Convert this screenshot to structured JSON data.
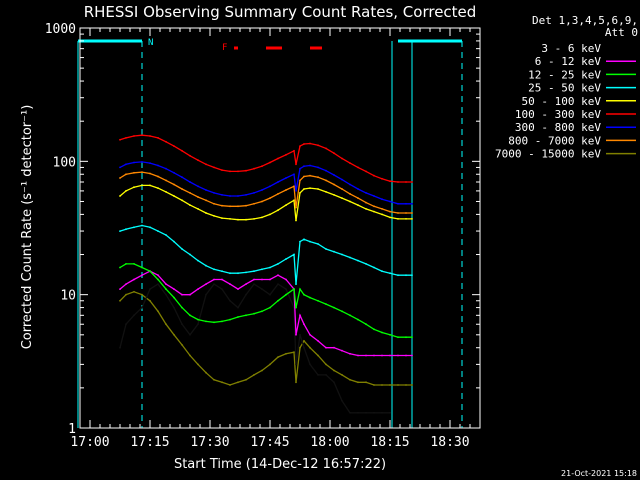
{
  "chart_data": {
    "type": "line",
    "title": "RHESSI Observing Summary Count Rates, Corrected",
    "xlabel": "Start Time (14-Dec-12 16:57:22)",
    "ylabel": "Corrected Count Rate (s⁻¹ detector⁻¹)",
    "y_scale": "log",
    "ylim": [
      1,
      1000
    ],
    "xlim": [
      "16:57:22",
      "18:37:00"
    ],
    "y_ticks": [
      "1",
      "10",
      "100",
      "1000"
    ],
    "x_ticks": [
      "17:00",
      "17:15",
      "17:30",
      "17:45",
      "18:00",
      "18:15",
      "18:30"
    ],
    "x_tick_minutes": [
      0,
      15,
      30,
      45,
      60,
      75,
      90
    ],
    "legend_header": [
      "Det 1,3,4,5,6,9,",
      "Att 0"
    ],
    "legend_placement": "right",
    "timestamp": "21-Oct-2021 15:18",
    "annotations": {
      "night_label": "N",
      "flare_label": "F",
      "night_intervals_min": [
        [
          -3,
          13
        ],
        [
          77,
          93
        ]
      ],
      "night_dashed_lines_min": [
        13,
        93
      ],
      "solid_lines_min": [
        -3,
        75.5,
        80.5
      ],
      "flare_segments_min": [
        [
          36,
          37
        ],
        [
          44,
          48
        ],
        [
          55,
          58
        ]
      ]
    },
    "series": [
      {
        "name": "3 - 6 keV",
        "color": "#000000",
        "times_min": [
          7.5,
          9,
          11,
          13,
          15,
          17,
          19,
          21,
          23,
          25,
          27,
          29,
          31,
          33,
          35,
          37,
          39,
          41,
          43,
          45,
          47,
          49,
          51,
          51.5,
          52.5,
          53.5,
          55,
          57,
          59,
          61,
          63,
          65,
          67,
          69,
          71,
          73,
          75
        ],
        "values": [
          4,
          6,
          7,
          8,
          11,
          12,
          10,
          8,
          6,
          5,
          6,
          10,
          12,
          11,
          9,
          8,
          10,
          12,
          11,
          10,
          12,
          11,
          8,
          3,
          5,
          4,
          3,
          2.5,
          2.5,
          2.2,
          1.6,
          1.3,
          1.3,
          1.3,
          1.3,
          1.3,
          1.3
        ]
      },
      {
        "name": "6 - 12 keV",
        "color": "#ff00ff",
        "times_min": [
          7.5,
          9,
          11,
          13,
          15,
          17,
          19,
          21,
          23,
          25,
          27,
          29,
          31,
          33,
          35,
          37,
          39,
          41,
          43,
          45,
          47,
          49,
          51,
          51.5,
          52.5,
          53.5,
          55,
          57,
          59,
          61,
          63,
          65,
          67,
          69,
          71,
          73,
          75,
          77,
          79,
          80.5
        ],
        "values": [
          11,
          12,
          13,
          14,
          15,
          14,
          12,
          11,
          10,
          10,
          11,
          12,
          13,
          13,
          12,
          11,
          12,
          13,
          13,
          13,
          14,
          13,
          11,
          5,
          7,
          6,
          5,
          4.5,
          4,
          4,
          3.8,
          3.6,
          3.5,
          3.5,
          3.5,
          3.5,
          3.5,
          3.5,
          3.5,
          3.5
        ]
      },
      {
        "name": "12 - 25 keV",
        "color": "#00ff00",
        "times_min": [
          7.5,
          9,
          11,
          13,
          15,
          17,
          19,
          21,
          23,
          25,
          27,
          29,
          31,
          33,
          35,
          37,
          39,
          41,
          43,
          45,
          47,
          49,
          51,
          51.5,
          52.5,
          53.5,
          55,
          57,
          59,
          61,
          63,
          65,
          67,
          69,
          71,
          73,
          75,
          77,
          79,
          80.5
        ],
        "values": [
          16,
          17,
          17,
          16,
          15,
          13,
          11,
          9.5,
          8,
          7,
          6.5,
          6.3,
          6.2,
          6.3,
          6.5,
          6.8,
          7,
          7.2,
          7.5,
          8,
          9,
          10,
          11,
          8,
          11,
          10,
          9.5,
          9,
          8.5,
          8,
          7.5,
          7,
          6.5,
          6,
          5.5,
          5.2,
          5,
          4.8,
          4.8,
          4.8
        ]
      },
      {
        "name": "25 - 50 keV",
        "color": "#00ffff",
        "times_min": [
          7.5,
          9,
          11,
          13,
          15,
          17,
          19,
          21,
          23,
          25,
          27,
          29,
          31,
          33,
          35,
          37,
          39,
          41,
          43,
          45,
          47,
          49,
          51,
          51.5,
          52.5,
          53.5,
          55,
          57,
          59,
          61,
          63,
          65,
          67,
          69,
          71,
          73,
          75,
          77,
          79,
          80.5
        ],
        "values": [
          30,
          31,
          32,
          33,
          32,
          30,
          28,
          25,
          22,
          20,
          18,
          16.5,
          15.5,
          15,
          14.5,
          14.5,
          14.7,
          15,
          15.5,
          16,
          17,
          18.5,
          20,
          12,
          25,
          26,
          25,
          24,
          22,
          21,
          20,
          19,
          18,
          17,
          16,
          15,
          14.5,
          14,
          14,
          14
        ]
      },
      {
        "name": "50 - 100 keV",
        "color": "#ffff00",
        "times_min": [
          7.5,
          9,
          11,
          13,
          15,
          17,
          19,
          21,
          23,
          25,
          27,
          29,
          31,
          33,
          35,
          37,
          39,
          41,
          43,
          45,
          47,
          49,
          51,
          51.5,
          52.5,
          53.5,
          55,
          57,
          59,
          61,
          63,
          65,
          67,
          69,
          71,
          73,
          75,
          77,
          79,
          80.5
        ],
        "values": [
          55,
          60,
          64,
          66,
          66,
          63,
          59,
          55,
          51,
          47,
          44,
          41,
          39,
          37.5,
          37,
          36.5,
          36.5,
          37,
          38,
          40,
          43,
          47,
          51,
          36,
          58,
          62,
          63,
          62,
          59,
          56,
          53,
          50,
          47,
          44,
          42,
          40,
          38,
          37,
          37,
          37
        ]
      },
      {
        "name": "100 - 300 keV",
        "color": "#ff0000",
        "times_min": [
          7.5,
          9,
          11,
          13,
          15,
          17,
          19,
          21,
          23,
          25,
          27,
          29,
          31,
          33,
          35,
          37,
          39,
          41,
          43,
          45,
          47,
          49,
          51,
          51.5,
          52.5,
          53.5,
          55,
          57,
          59,
          61,
          63,
          65,
          67,
          69,
          71,
          73,
          75,
          77,
          79,
          80.5
        ],
        "values": [
          145,
          150,
          155,
          157,
          155,
          150,
          140,
          130,
          120,
          110,
          102,
          95,
          90,
          86,
          84,
          84,
          85,
          88,
          92,
          98,
          105,
          112,
          120,
          95,
          130,
          135,
          136,
          132,
          125,
          115,
          105,
          97,
          90,
          84,
          78,
          74,
          71,
          70,
          70,
          70
        ]
      },
      {
        "name": "300 - 800 keV",
        "color": "#0000ff",
        "times_min": [
          7.5,
          9,
          11,
          13,
          15,
          17,
          19,
          21,
          23,
          25,
          27,
          29,
          31,
          33,
          35,
          37,
          39,
          41,
          43,
          45,
          47,
          49,
          51,
          51.5,
          52.5,
          53.5,
          55,
          57,
          59,
          61,
          63,
          65,
          67,
          69,
          71,
          73,
          75,
          77,
          79,
          80.5
        ],
        "values": [
          90,
          95,
          98,
          99,
          97,
          93,
          88,
          82,
          76,
          70,
          65,
          61,
          58,
          56,
          55,
          55,
          56,
          58,
          61,
          65,
          70,
          75,
          80,
          60,
          88,
          92,
          93,
          90,
          85,
          79,
          73,
          67,
          62,
          58,
          55,
          52,
          50,
          48,
          48,
          48
        ]
      },
      {
        "name": "800 - 7000 keV",
        "color": "#ff8800",
        "times_min": [
          7.5,
          9,
          11,
          13,
          15,
          17,
          19,
          21,
          23,
          25,
          27,
          29,
          31,
          33,
          35,
          37,
          39,
          41,
          43,
          45,
          47,
          49,
          51,
          51.5,
          52.5,
          53.5,
          55,
          57,
          59,
          61,
          63,
          65,
          67,
          69,
          71,
          73,
          75,
          77,
          79,
          80.5
        ],
        "values": [
          75,
          80,
          82,
          83,
          81,
          77,
          72,
          67,
          62,
          58,
          54,
          51,
          48,
          46.5,
          46,
          46,
          46.5,
          48,
          50,
          53,
          57,
          61,
          65,
          45,
          72,
          77,
          78,
          76,
          72,
          67,
          62,
          57,
          53,
          49,
          46,
          44,
          42,
          41,
          41,
          41
        ]
      },
      {
        "name": "7000 - 15000 keV",
        "color": "#808000",
        "times_min": [
          7.5,
          9,
          11,
          13,
          15,
          17,
          19,
          21,
          23,
          25,
          27,
          29,
          31,
          33,
          35,
          37,
          39,
          41,
          43,
          45,
          47,
          49,
          51,
          51.5,
          52.5,
          53.5,
          55,
          57,
          59,
          61,
          63,
          65,
          67,
          69,
          71,
          73,
          75,
          77,
          79,
          80.5
        ],
        "values": [
          9,
          10,
          10.5,
          10,
          9,
          7.5,
          6,
          5,
          4.2,
          3.5,
          3,
          2.6,
          2.3,
          2.2,
          2.1,
          2.2,
          2.3,
          2.5,
          2.7,
          3,
          3.4,
          3.6,
          3.7,
          2.2,
          4,
          4.5,
          4,
          3.5,
          3,
          2.7,
          2.5,
          2.3,
          2.2,
          2.2,
          2.1,
          2.1,
          2.1,
          2.1,
          2.1,
          2.1
        ]
      }
    ]
  }
}
